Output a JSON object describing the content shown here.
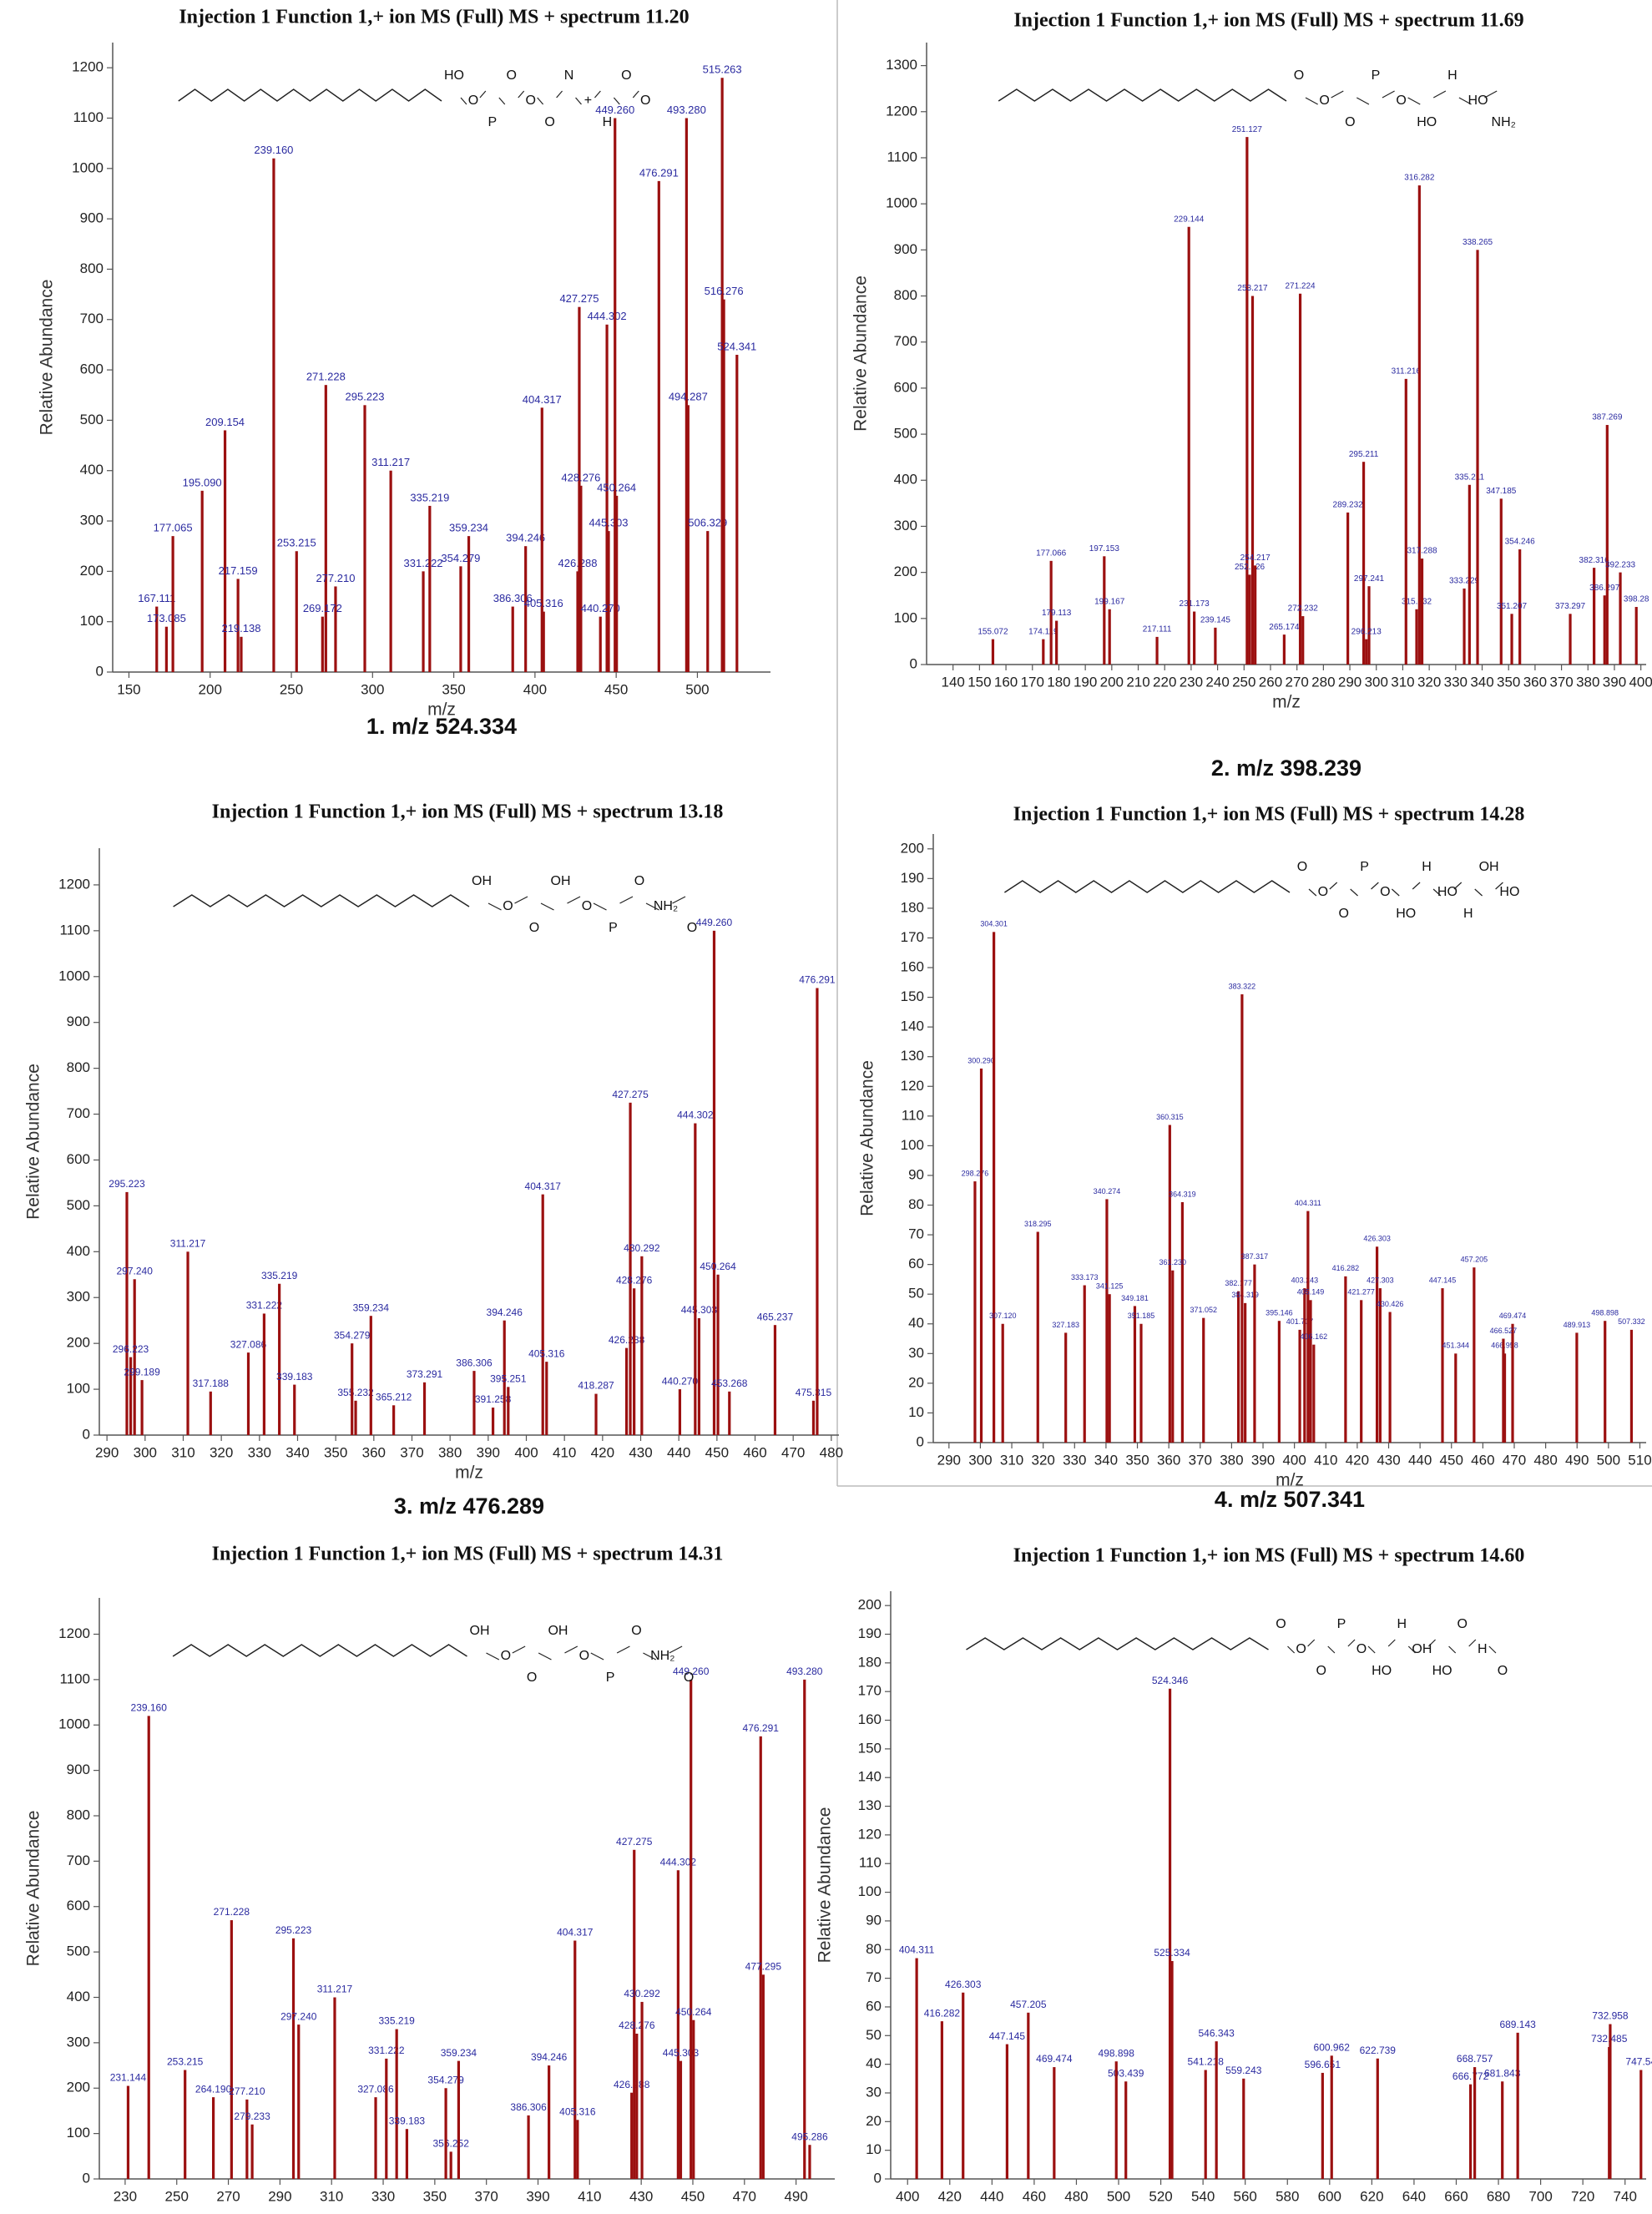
{
  "chart_data": [
    {
      "type": "bar",
      "title": "Injection 1 Function 1,+ ion MS (Full) MS + spectrum 11.20",
      "caption": "1. m/z 524.334",
      "x_label": "m/z",
      "y_label": "Relative Abundance",
      "color": "#9b1010",
      "x": [
        167.111,
        173.085,
        177.065,
        195.09,
        209.154,
        217.159,
        219.138,
        239.16,
        253.215,
        271.228,
        277.21,
        269.172,
        295.223,
        311.217,
        331.222,
        335.219,
        354.279,
        359.234,
        386.306,
        394.246,
        404.317,
        405.316,
        426.288,
        427.275,
        428.276,
        444.302,
        445.303,
        440.27,
        449.26,
        450.264,
        476.291,
        493.28,
        494.287,
        506.329,
        515.263,
        516.276,
        524.341
      ],
      "x_labels": [
        "167.111",
        "173.085",
        "177.065",
        "195.090",
        "209.154",
        "217.159",
        "219.138",
        "239.160",
        "253.215",
        "271.228",
        "277.210",
        "269.172",
        "295.223",
        "311.217",
        "331.222",
        "335.219",
        "354.279",
        "359.234",
        "386.306",
        "394.246",
        "404.317",
        "405.316",
        "426.288",
        "427.275",
        "428.276",
        "444.302",
        "445.303",
        "440.270",
        "449.260",
        "450.264",
        "476.291",
        "493.280",
        "494.287",
        "506.329",
        "515.263",
        "516.276",
        "524.341"
      ],
      "values": [
        130,
        90,
        270,
        360,
        480,
        185,
        70,
        1020,
        240,
        570,
        170,
        110,
        530,
        400,
        200,
        330,
        210,
        270,
        130,
        250,
        525,
        120,
        200,
        725,
        370,
        690,
        280,
        110,
        1100,
        350,
        975,
        1100,
        530,
        280,
        1180,
        740,
        630
      ],
      "xlim": [
        140,
        545
      ],
      "ylim": [
        0,
        1250
      ],
      "xticks": [
        150,
        200,
        250,
        300,
        350,
        400,
        450,
        500
      ],
      "yticks": [
        0,
        100,
        200,
        300,
        400,
        500,
        600,
        700,
        800,
        900,
        1000,
        1100,
        1200
      ],
      "structure_labels": [
        "HO",
        "O",
        "P",
        "O",
        "O",
        "O",
        "N",
        "+",
        "H",
        "O",
        "O"
      ]
    },
    {
      "type": "bar",
      "title": "Injection 1 Function 1,+ ion MS (Full) MS + spectrum 11.69",
      "caption": "2. m/z 398.239",
      "x_label": "m/z",
      "y_label": "Relative Abundance",
      "color": "#9b1010",
      "x": [
        155.072,
        174.119,
        177.066,
        179.113,
        197.153,
        199.167,
        217.111,
        231.173,
        229.144,
        239.145,
        251.127,
        252.126,
        253.217,
        254.217,
        265.174,
        271.224,
        272.232,
        289.232,
        295.211,
        297.241,
        296.213,
        315.232,
        311.216,
        316.282,
        317.288,
        333.229,
        335.211,
        338.265,
        347.185,
        354.246,
        351.207,
        382.316,
        386.297,
        373.297,
        387.269,
        392.233,
        398.28
      ],
      "x_labels": [
        "155.072",
        "174.119",
        "177.066",
        "179.113",
        "197.153",
        "199.167",
        "217.111",
        "231.173",
        "229.144",
        "239.145",
        "251.127",
        "252.126",
        "253.217",
        "254.217",
        "265.174",
        "271.224",
        "272.232",
        "289.232",
        "295.211",
        "297.241",
        "296.213",
        "315.232",
        "311.216",
        "316.282",
        "317.288",
        "333.229",
        "335.211",
        "338.265",
        "347.185",
        "354.246",
        "351.207",
        "382.316",
        "386.297",
        "373.297",
        "387.269",
        "392.233",
        "398.28"
      ],
      "values": [
        55,
        55,
        225,
        95,
        235,
        120,
        60,
        115,
        950,
        80,
        1145,
        195,
        800,
        215,
        65,
        805,
        105,
        330,
        440,
        170,
        55,
        120,
        620,
        1040,
        230,
        165,
        390,
        900,
        360,
        250,
        110,
        210,
        150,
        110,
        520,
        200,
        125
      ],
      "xlim": [
        130,
        402
      ],
      "ylim": [
        0,
        1350
      ],
      "xticks": [
        140,
        150,
        160,
        170,
        180,
        190,
        200,
        210,
        220,
        230,
        240,
        250,
        260,
        270,
        280,
        290,
        300,
        310,
        320,
        330,
        340,
        350,
        360,
        370,
        380,
        390,
        400
      ],
      "yticks": [
        0,
        100,
        200,
        300,
        400,
        500,
        600,
        700,
        800,
        900,
        1000,
        1100,
        1200,
        1300
      ],
      "structure_labels": [
        "O",
        "O",
        "O",
        "P",
        "O",
        "HO",
        "H",
        "HO",
        "NH₂"
      ]
    },
    {
      "type": "bar",
      "title": "Injection 1 Function 1,+ ion MS (Full) MS + spectrum 13.18",
      "caption": "3. m/z 476.289",
      "x_label": "m/z",
      "y_label": "Relative Abundance",
      "color": "#9b1010",
      "x": [
        295.223,
        297.24,
        296.223,
        299.189,
        311.217,
        317.188,
        327.086,
        331.222,
        335.219,
        339.183,
        355.232,
        354.279,
        359.234,
        365.212,
        373.291,
        386.306,
        391.258,
        394.246,
        395.251,
        404.317,
        405.316,
        418.287,
        426.288,
        427.275,
        428.276,
        430.292,
        440.27,
        445.303,
        444.302,
        449.26,
        450.264,
        453.268,
        465.237,
        475.315,
        476.291
      ],
      "x_labels": [
        "295.223",
        "297.240",
        "296.223",
        "299.189",
        "311.217",
        "317.188",
        "327.086",
        "331.222",
        "335.219",
        "339.183",
        "355.232",
        "354.279",
        "359.234",
        "365.212",
        "373.291",
        "386.306",
        "391.258",
        "394.246",
        "395.251",
        "404.317",
        "405.316",
        "418.287",
        "426.288",
        "427.275",
        "428.276",
        "430.292",
        "440.270",
        "445.303",
        "444.302",
        "449.260",
        "450.264",
        "453.268",
        "465.237",
        "475.315",
        "476.291"
      ],
      "values": [
        530,
        340,
        170,
        120,
        400,
        95,
        180,
        265,
        330,
        110,
        75,
        200,
        260,
        65,
        115,
        140,
        60,
        250,
        105,
        525,
        160,
        90,
        190,
        725,
        320,
        390,
        100,
        255,
        680,
        1100,
        350,
        95,
        240,
        75,
        975
      ],
      "xlim": [
        288,
        482
      ],
      "ylim": [
        0,
        1280
      ],
      "xticks": [
        290,
        300,
        310,
        320,
        330,
        340,
        350,
        360,
        370,
        380,
        390,
        400,
        410,
        420,
        430,
        440,
        450,
        460,
        470,
        480
      ],
      "yticks": [
        0,
        100,
        200,
        300,
        400,
        500,
        600,
        700,
        800,
        900,
        1000,
        1100,
        1200
      ],
      "structure_labels": [
        "OH",
        "O",
        "O",
        "OH",
        "O",
        "P",
        "O",
        "NH₂",
        "O"
      ]
    },
    {
      "type": "bar",
      "title": "Injection 1 Function 1,+ ion MS (Full) MS + spectrum 14.28",
      "caption": "4. m/z 507.341",
      "x_label": "m/z",
      "y_label": "Relative Abundance",
      "color": "#9b1010",
      "x": [
        298.276,
        300.29,
        304.301,
        307.12,
        318.295,
        327.183,
        333.173,
        340.274,
        341.125,
        349.181,
        351.185,
        360.315,
        364.319,
        361.23,
        371.052,
        382.177,
        384.319,
        383.322,
        387.317,
        395.146,
        401.707,
        403.243,
        404.311,
        405.149,
        406.162,
        416.282,
        421.277,
        426.303,
        427.303,
        430.426,
        447.145,
        451.344,
        457.205,
        466.958,
        469.474,
        466.527,
        489.913,
        498.898,
        507.332
      ],
      "x_labels": [
        "298.276",
        "300.290",
        "304.301",
        "307.120",
        "318.295",
        "327.183",
        "333.173",
        "340.274",
        "341.125",
        "349.181",
        "351.185",
        "360.315",
        "364.319",
        "361.230",
        "371.052",
        "382.177",
        "384.319",
        "383.322",
        "387.317",
        "395.146",
        "401.707",
        "403.243",
        "404.311",
        "405.149",
        "406.162",
        "416.282",
        "421.277",
        "426.303",
        "427.303",
        "430.426",
        "447.145",
        "451.344",
        "457.205",
        "466.958",
        "469.474",
        "466.527",
        "489.913",
        "498.898",
        "507.332"
      ],
      "values": [
        88,
        126,
        172,
        40,
        71,
        37,
        53,
        82,
        50,
        46,
        40,
        107,
        81,
        58,
        42,
        51,
        47,
        151,
        60,
        41,
        38,
        52,
        78,
        48,
        33,
        56,
        48,
        66,
        52,
        44,
        52,
        30,
        59,
        30,
        40,
        35,
        37,
        41,
        38
      ],
      "xlim": [
        285,
        512
      ],
      "ylim": [
        0,
        205
      ],
      "xticks": [
        290,
        300,
        310,
        320,
        330,
        340,
        350,
        360,
        370,
        380,
        390,
        400,
        410,
        420,
        430,
        440,
        450,
        460,
        470,
        480,
        490,
        500,
        510
      ],
      "yticks": [
        0,
        10,
        20,
        30,
        40,
        50,
        60,
        70,
        80,
        90,
        100,
        110,
        120,
        130,
        140,
        150,
        160,
        170,
        180,
        190,
        200
      ],
      "structure_labels": [
        "O",
        "O",
        "O",
        "P",
        "O",
        "HO",
        "H",
        "HO",
        "H",
        "OH",
        "HO"
      ]
    },
    {
      "type": "bar",
      "title": "Injection 1 Function 1,+ ion MS (Full) MS + spectrum 14.31",
      "y_label": "Relative Abundance",
      "color": "#9b1010",
      "x": [
        231.144,
        239.16,
        253.215,
        264.19,
        271.228,
        277.21,
        279.233,
        295.223,
        297.24,
        311.217,
        327.086,
        331.222,
        335.219,
        339.183,
        356.252,
        354.279,
        359.234,
        386.306,
        394.246,
        404.317,
        405.316,
        426.288,
        427.275,
        428.276,
        430.292,
        444.302,
        445.303,
        449.26,
        450.264,
        476.291,
        477.295,
        493.28,
        495.286
      ],
      "x_labels": [
        "231.144",
        "239.160",
        "253.215",
        "264.190",
        "271.228",
        "277.210",
        "279.233",
        "295.223",
        "297.240",
        "311.217",
        "327.086",
        "331.222",
        "335.219",
        "339.183",
        "356.252",
        "354.279",
        "359.234",
        "386.306",
        "394.246",
        "404.317",
        "405.316",
        "426.288",
        "427.275",
        "428.276",
        "430.292",
        "444.302",
        "445.303",
        "449.260",
        "450.264",
        "476.291",
        "477.295",
        "493.280",
        "495.286"
      ],
      "values": [
        205,
        1020,
        240,
        180,
        570,
        175,
        120,
        530,
        340,
        400,
        180,
        265,
        330,
        110,
        60,
        200,
        260,
        140,
        250,
        525,
        130,
        190,
        725,
        320,
        390,
        680,
        260,
        1100,
        350,
        975,
        450,
        1100,
        75
      ],
      "xlim": [
        220,
        505
      ],
      "ylim": [
        0,
        1280
      ],
      "xticks": [
        230,
        250,
        270,
        290,
        310,
        330,
        350,
        370,
        390,
        410,
        430,
        450,
        470,
        490
      ],
      "yticks": [
        0,
        100,
        200,
        300,
        400,
        500,
        600,
        700,
        800,
        900,
        1000,
        1100,
        1200
      ],
      "structure_labels": [
        "OH",
        "O",
        "O",
        "OH",
        "O",
        "P",
        "O",
        "NH₂",
        "O"
      ]
    },
    {
      "type": "bar",
      "title": "Injection 1 Function 1,+ ion MS (Full) MS + spectrum 14.60",
      "y_label": "Relative Abundance",
      "color": "#9b1010",
      "x": [
        404.311,
        416.282,
        426.303,
        447.145,
        457.205,
        469.474,
        503.439,
        498.898,
        524.346,
        525.334,
        541.218,
        546.343,
        559.243,
        596.651,
        600.962,
        622.739,
        666.772,
        668.757,
        681.843,
        689.143,
        732.485,
        732.958,
        747.54
      ],
      "x_labels": [
        "404.311",
        "416.282",
        "426.303",
        "447.145",
        "457.205",
        "469.474",
        "503.439",
        "498.898",
        "524.346",
        "525.334",
        "541.218",
        "546.343",
        "559.243",
        "596.651",
        "600.962",
        "622.739",
        "666.772",
        "668.757",
        "681.843",
        "689.143",
        "732.485",
        "732.958",
        "747.54"
      ],
      "values": [
        77,
        55,
        65,
        47,
        58,
        39,
        34,
        41,
        171,
        76,
        38,
        48,
        35,
        37,
        43,
        42,
        33,
        39,
        34,
        51,
        46,
        54,
        38
      ],
      "xlim": [
        392,
        750
      ],
      "ylim": [
        0,
        205
      ],
      "xticks": [
        400,
        420,
        440,
        460,
        480,
        500,
        520,
        540,
        560,
        580,
        600,
        620,
        640,
        660,
        680,
        700,
        720,
        740
      ],
      "yticks": [
        0,
        10,
        20,
        30,
        40,
        50,
        60,
        70,
        80,
        90,
        100,
        110,
        120,
        130,
        140,
        150,
        160,
        170,
        180,
        190,
        200
      ],
      "structure_labels": [
        "O",
        "O",
        "O",
        "P",
        "O",
        "HO",
        "H",
        "OH",
        "HO",
        "O",
        "H",
        "O"
      ]
    }
  ]
}
